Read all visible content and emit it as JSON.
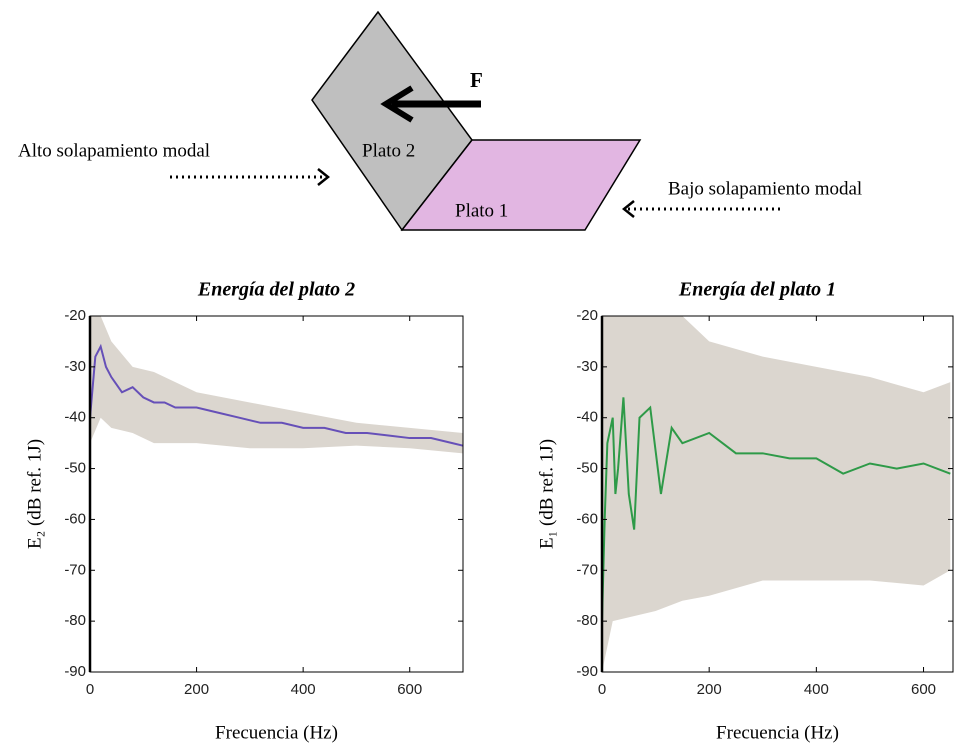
{
  "diagram": {
    "force_label": "F",
    "plate_2_label": "Plato 2",
    "plate_1_label": "Plato 1",
    "left_label": "Alto solapamiento modal",
    "right_label": "Bajo solapamiento modal"
  },
  "chart_data": [
    {
      "type": "line",
      "title": "Energía del plato 2",
      "xlabel": "Frecuencia (Hz)",
      "ylabel": "E₂ (dB ref. 1J)",
      "x": [
        0,
        10,
        20,
        30,
        40,
        60,
        80,
        100,
        120,
        140,
        160,
        200,
        240,
        280,
        320,
        360,
        400,
        440,
        480,
        520,
        560,
        600,
        640,
        680,
        700
      ],
      "series": [
        {
          "color": "#6650b8",
          "values": [
            -40,
            -28,
            -26,
            -30,
            -32,
            -35,
            -34,
            -36,
            -37,
            -37,
            -38,
            -38,
            -39,
            -40,
            -41,
            -41,
            -42,
            -42,
            -43,
            -43,
            -43.5,
            -44,
            -44,
            -45,
            -45.5
          ]
        }
      ],
      "band": {
        "color": "#dbd6cf",
        "x": [
          0,
          20,
          40,
          80,
          120,
          200,
          300,
          400,
          500,
          600,
          700
        ],
        "upper": [
          -20,
          -20,
          -25,
          -30,
          -31,
          -35,
          -37,
          -39,
          -41,
          -42,
          -43
        ],
        "lower": [
          -45,
          -40,
          -42,
          -43,
          -45,
          -45,
          -46,
          -46,
          -45.5,
          -46,
          -47
        ]
      },
      "xlim": [
        0,
        700
      ],
      "ylim": [
        -90,
        -20
      ],
      "xticks": [
        0,
        200,
        400,
        600
      ],
      "yticks": [
        -90,
        -80,
        -70,
        -60,
        -50,
        -40,
        -30,
        -20
      ]
    },
    {
      "type": "line",
      "title": "Energía del plato 1",
      "xlabel": "Frecuencia (Hz)",
      "ylabel": "E₁ (dB ref. 1J)",
      "x": [
        0,
        5,
        10,
        20,
        25,
        30,
        40,
        50,
        60,
        70,
        90,
        110,
        130,
        150,
        200,
        250,
        300,
        350,
        400,
        450,
        500,
        550,
        600,
        650
      ],
      "series": [
        {
          "color": "#2e9a48",
          "values": [
            -80,
            -60,
            -45,
            -40,
            -55,
            -50,
            -36,
            -55,
            -62,
            -40,
            -38,
            -55,
            -42,
            -45,
            -43,
            -47,
            -47,
            -48,
            -48,
            -51,
            -49,
            -50,
            -49,
            -51
          ]
        }
      ],
      "band": {
        "color": "#dbd6cf",
        "x": [
          0,
          20,
          100,
          150,
          200,
          300,
          400,
          500,
          600,
          650
        ],
        "upper": [
          -20,
          -20,
          -20,
          -20,
          -25,
          -28,
          -30,
          -32,
          -35,
          -33
        ],
        "lower": [
          -90,
          -80,
          -78,
          -76,
          -75,
          -72,
          -72,
          -72,
          -73,
          -70
        ]
      },
      "xlim": [
        0,
        655
      ],
      "ylim": [
        -90,
        -20
      ],
      "xticks": [
        0,
        200,
        400,
        600
      ],
      "yticks": [
        -90,
        -80,
        -70,
        -60,
        -50,
        -40,
        -30,
        -20
      ]
    }
  ]
}
